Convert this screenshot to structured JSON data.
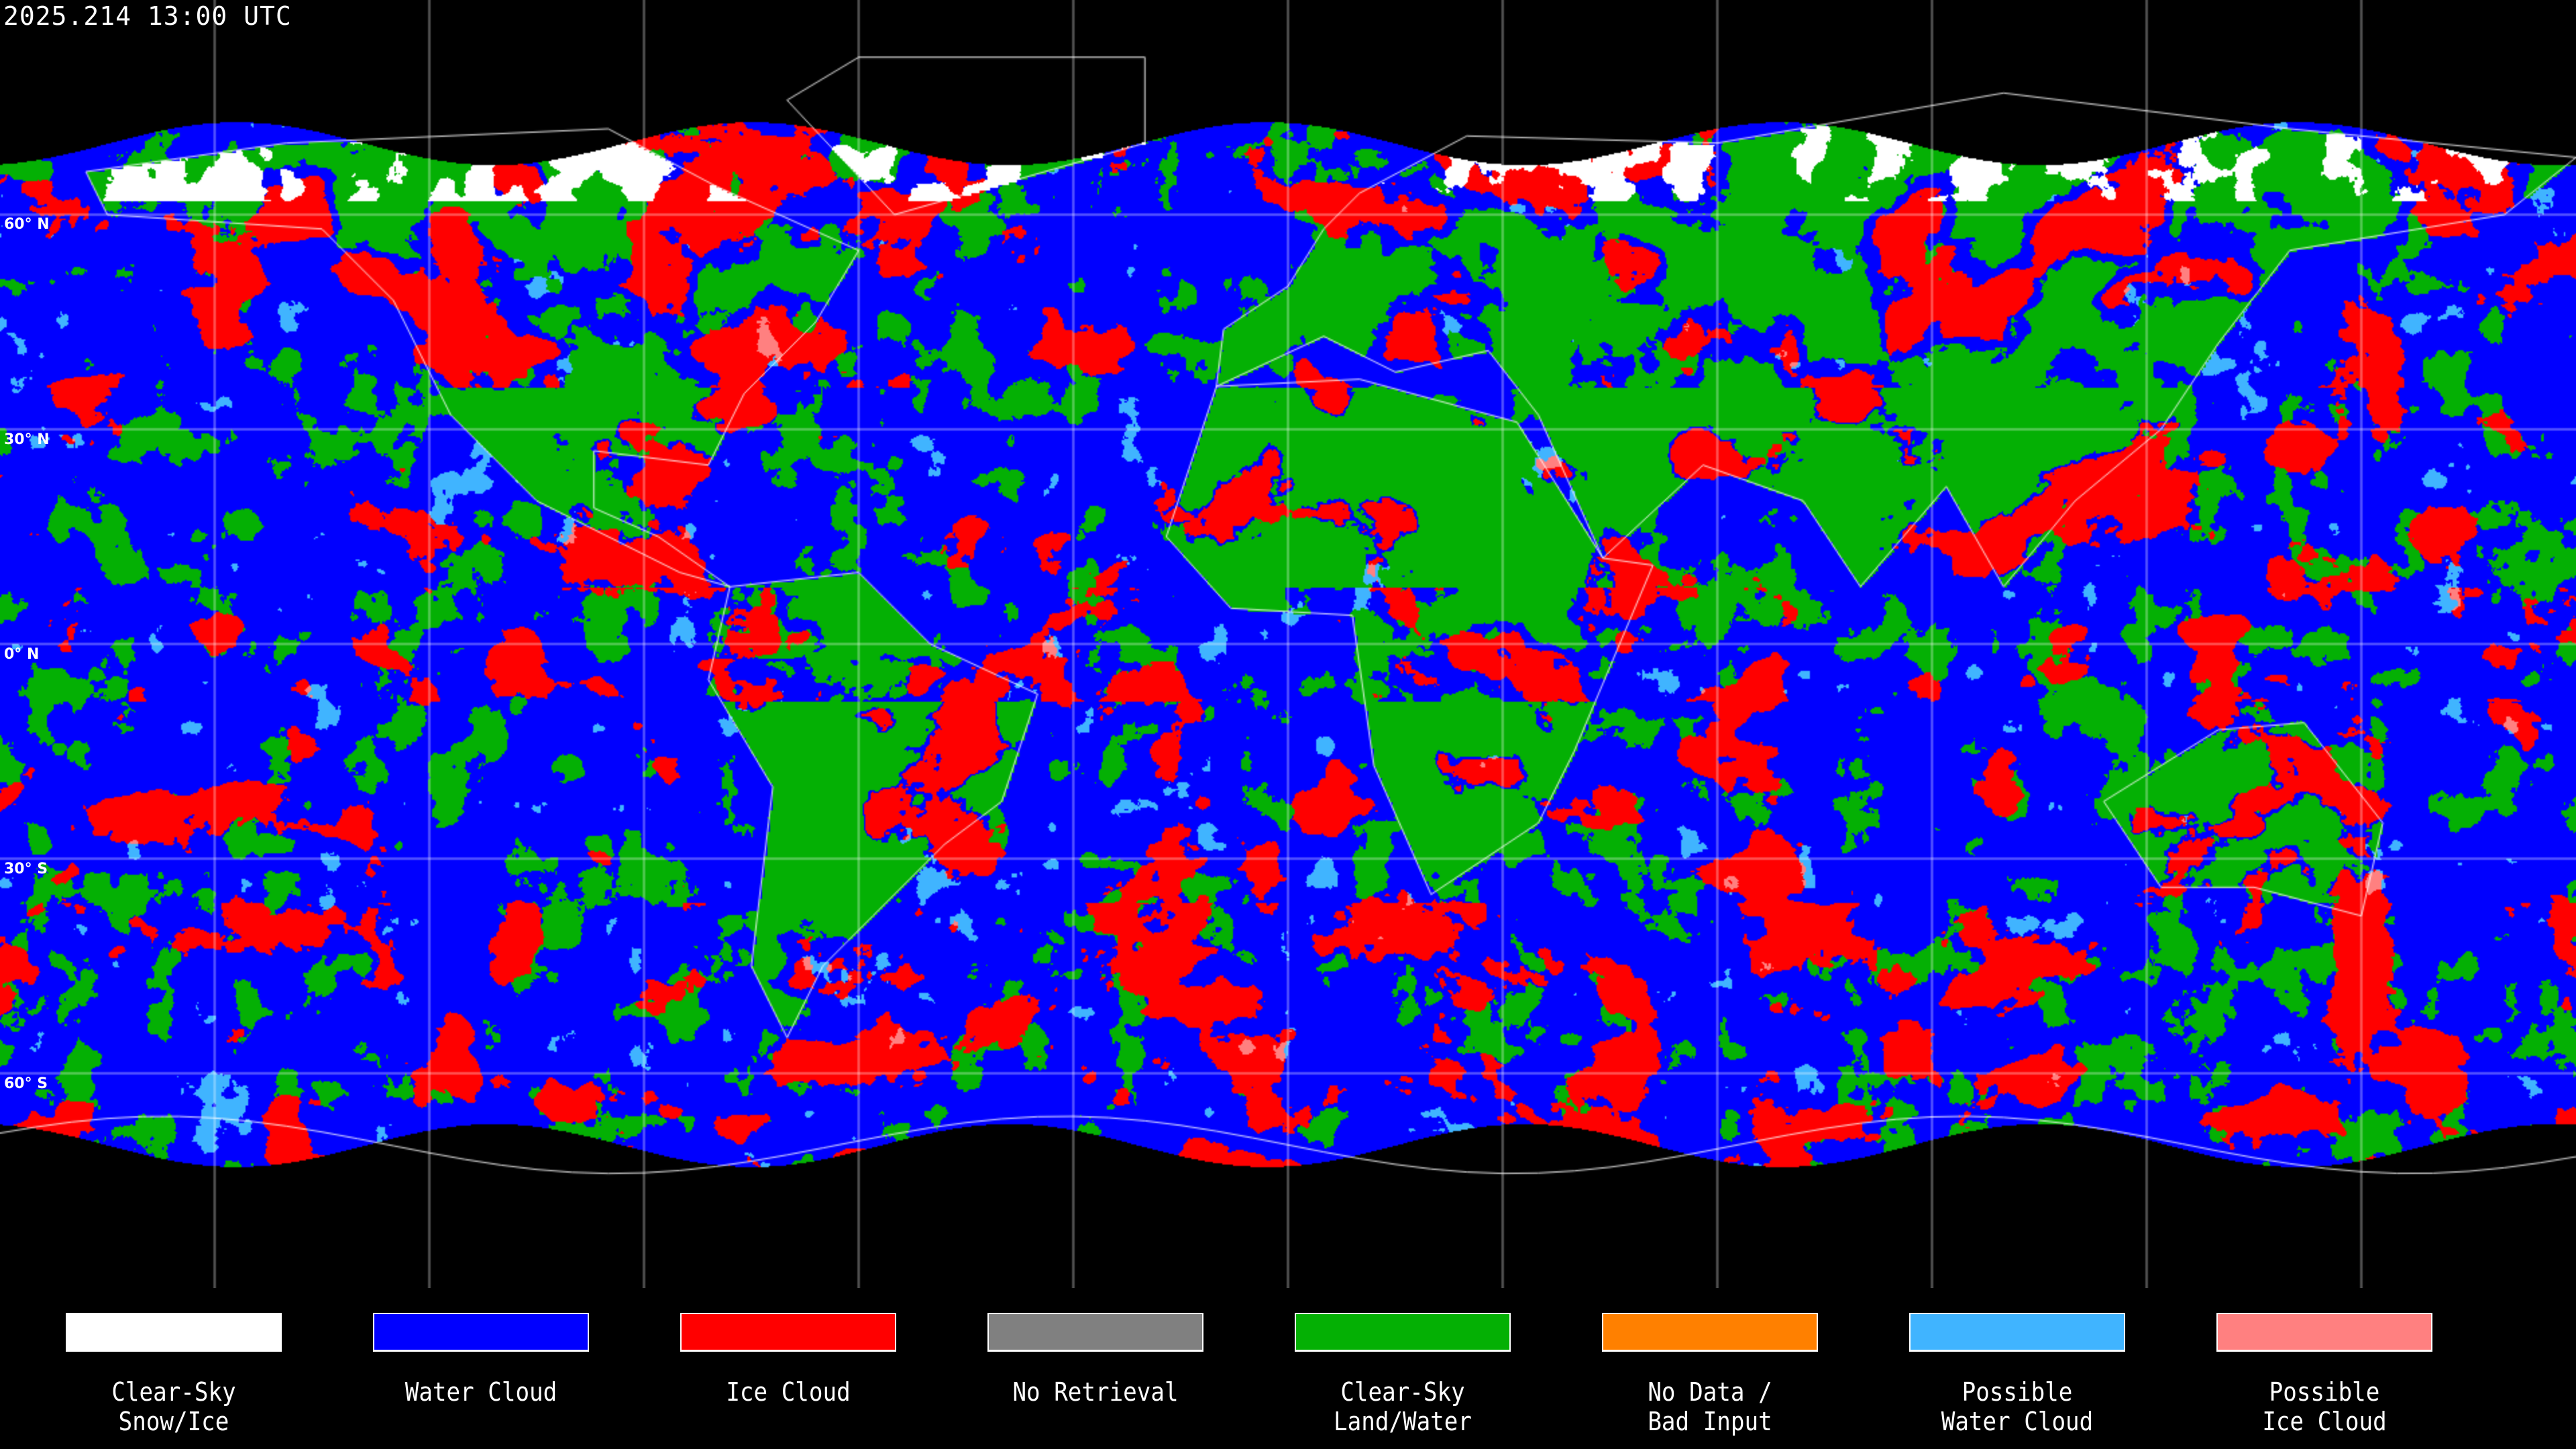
{
  "title": "2025.214 13:00 UTC",
  "map": {
    "projection": "equirectangular",
    "gridlines_lon_step_deg": 30,
    "gridlines_lat_step_deg": 30,
    "lat_labels": [
      "60° N",
      "30° N",
      "0° N",
      "30° S",
      "60° S"
    ],
    "background_color": "#000000",
    "coastline_color": "#ffffff",
    "grid_color": "#ffffff"
  },
  "legend": [
    {
      "label": "Clear-Sky\nSnow/Ice",
      "color": "#ffffff"
    },
    {
      "label": "Water Cloud",
      "color": "#0000ff"
    },
    {
      "label": "Ice Cloud",
      "color": "#ff0000"
    },
    {
      "label": "No Retrieval",
      "color": "#808080"
    },
    {
      "label": "Clear-Sky\nLand/Water",
      "color": "#04b004"
    },
    {
      "label": "No Data /\nBad Input",
      "color": "#ff8000"
    },
    {
      "label": "Possible\nWater Cloud",
      "color": "#40b4ff"
    },
    {
      "label": "Possible\nIce Cloud",
      "color": "#ff8080"
    }
  ]
}
